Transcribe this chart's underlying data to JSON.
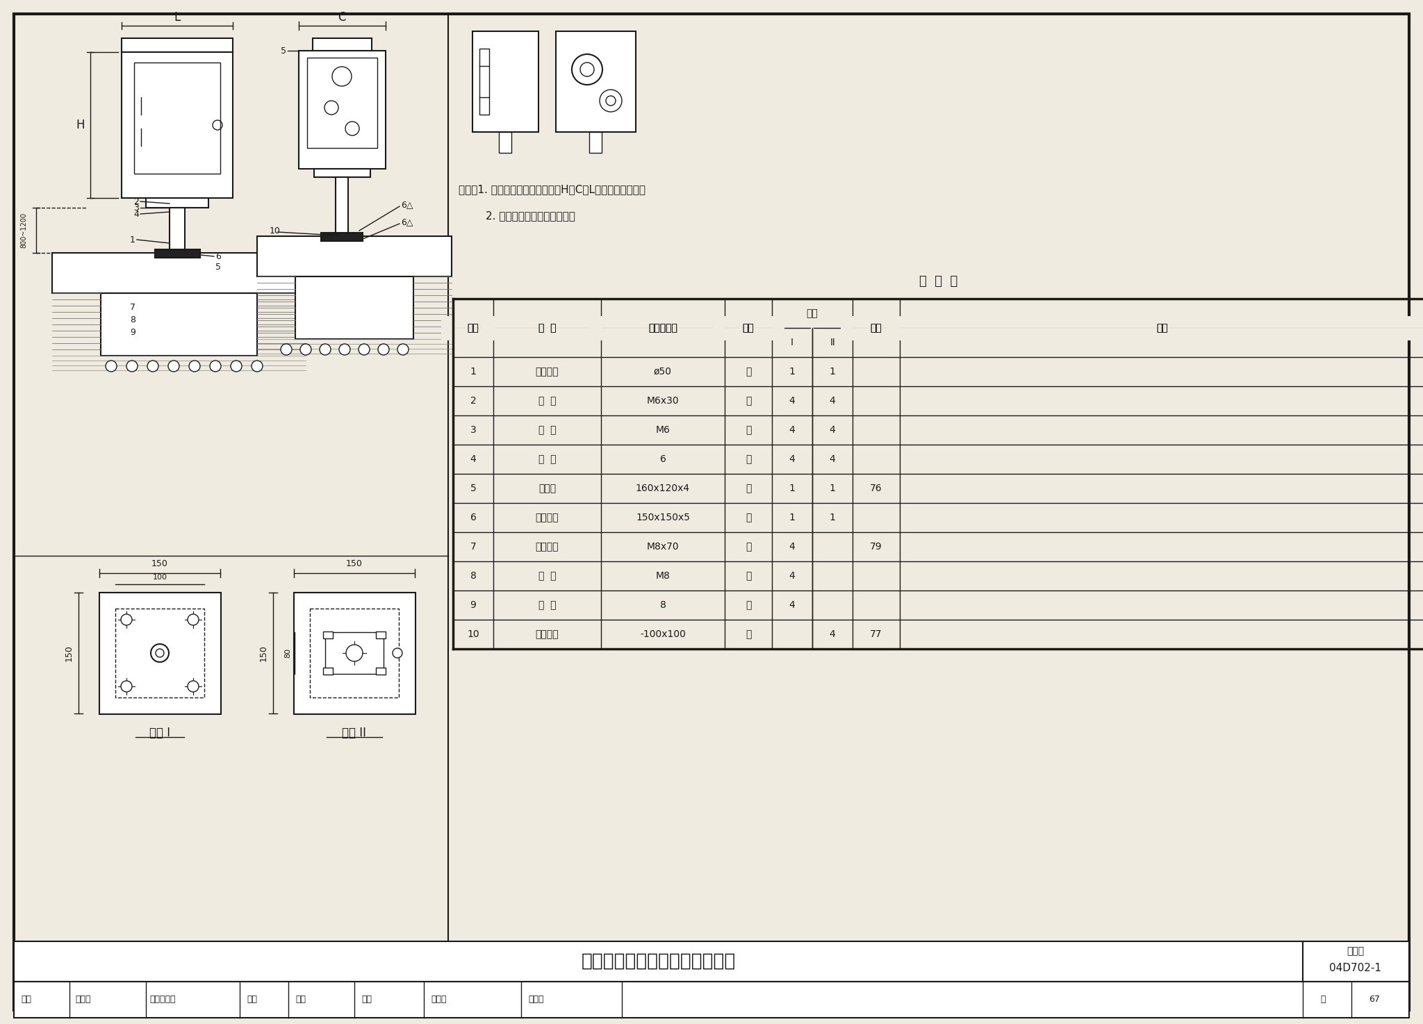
{
  "bg_color": "#f0ebe0",
  "line_color": "#1a1a1a",
  "title": "按钮转换开关在屋面上立柱安装",
  "fig_number": "04D702-1",
  "page": "67",
  "note_lines": [
    "附注：1. 开关箱为非标产品，尺寸H、C、L由工程设计确定。",
    "        2. 基础防水由相关专业完成。"
  ],
  "table_title": "材  料  表",
  "table_rows": [
    [
      "1",
      "镀锌钢管",
      "ø50",
      "根",
      "1",
      "1",
      "",
      ""
    ],
    [
      "2",
      "螺  栓",
      "M6x30",
      "个",
      "4",
      "4",
      "",
      ""
    ],
    [
      "3",
      "螺  母",
      "M6",
      "个",
      "4",
      "4",
      "",
      ""
    ],
    [
      "4",
      "垫  圈",
      "6",
      "个",
      "4",
      "4",
      "",
      ""
    ],
    [
      "5",
      "安装板",
      "160x120x4",
      "块",
      "1",
      "1",
      "76",
      ""
    ],
    [
      "6",
      "安装底板",
      "150x150x5",
      "块",
      "1",
      "1",
      "",
      ""
    ],
    [
      "7",
      "膨胀螺栓",
      "M8x70",
      "个",
      "4",
      "",
      "79",
      ""
    ],
    [
      "8",
      "螺  母",
      "M8",
      "个",
      "4",
      "",
      "",
      ""
    ],
    [
      "9",
      "垫  圈",
      "8",
      "个",
      "4",
      "",
      "",
      ""
    ],
    [
      "10",
      "预埋铁件",
      "-100x100",
      "块",
      "",
      "4",
      "77",
      ""
    ]
  ]
}
